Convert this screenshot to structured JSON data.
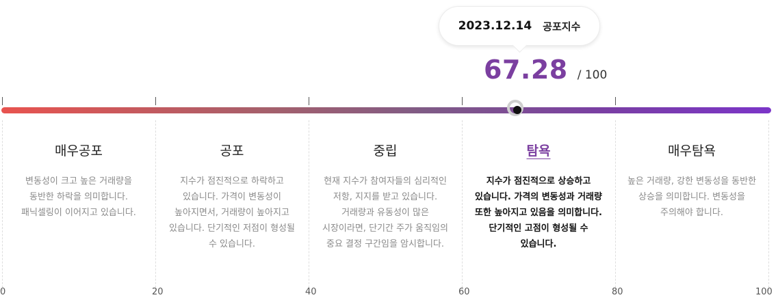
{
  "tooltip": {
    "date": "2023.12.14",
    "label": "공포지수"
  },
  "gauge": {
    "value": "67.28",
    "max_label": "/ 100",
    "value_fraction": 0.6728
  },
  "segments": [
    {
      "title": "매우공포",
      "description": "변동성이 크고 높은 거래량을 동반한 하락을 의미합니다. 패닉셀링이 이어지고 있습니다."
    },
    {
      "title": "공포",
      "description": "지수가 점진적으로 하락하고 있습니다. 가격이 변동성이 높아지면서, 거래량이 높아지고 있습니다. 단기적인 저점이 형성될 수 있습니다."
    },
    {
      "title": "중립",
      "description": "현재 지수가 참여자들의 심리적인 저항, 지지를 받고 있습니다. 거래량과 유동성이 많은 시장이라면, 단기간 주가 움직임의 중요 결정 구간임을 암시합니다."
    },
    {
      "title": "탐욕",
      "description": "지수가 점진적으로 상승하고 있습니다. 가격의 변동성과 거래량 또한 높아지고 있음을 의미합니다. 단기적인 고점이 형성될 수 있습니다.",
      "active": true
    },
    {
      "title": "매우탐욕",
      "description": "높은 거래량, 강한 변동성을 동반한 상승을 의미합니다. 변동성을 주의해야 합니다."
    }
  ],
  "axis_labels": [
    "0",
    "20",
    "40",
    "60",
    "80",
    "100"
  ],
  "colors": {
    "accent": "#7b3fa0",
    "gradient_start": "#e8534f",
    "gradient_end": "#7b35c8"
  }
}
